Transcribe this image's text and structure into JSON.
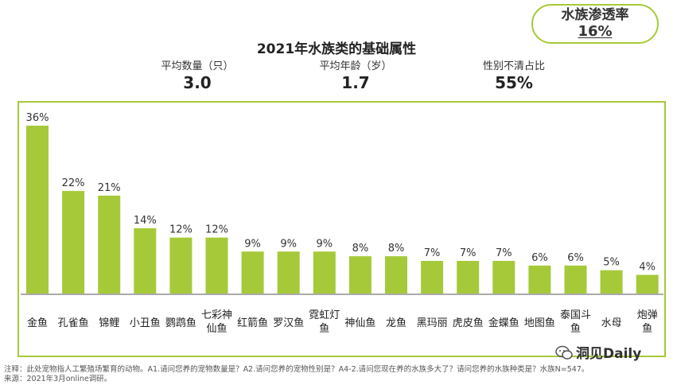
{
  "badge": {
    "label": "水族渗透率",
    "value": "16%"
  },
  "stats": [
    {
      "label": "平均数量（只）",
      "value": "3.0"
    },
    {
      "label": "平均年龄（岁）",
      "value": "1.7"
    },
    {
      "label": "性别不清占比",
      "value": "55%"
    }
  ],
  "watermark": {
    "text": "洞见Daily"
  },
  "notes": {
    "line1": "注释：此处宠物指人工繁殖场繁育的动物。A1.请问您养的宠物数量是？A2.请问您养的宠物性别是？A4-2.请问您现在养的水族多大了？请问您养的水族种类是？水族N=547。",
    "line2": "来源：2021年3月online调研。"
  },
  "colors": {
    "bar": "#a6c93a",
    "frame": "#a6c93a"
  },
  "chart_data": {
    "type": "bar",
    "title": "2021年水族类的基础属性",
    "xlabel": "",
    "ylabel": "",
    "ylim": [
      0,
      40
    ],
    "grid": false,
    "categories": [
      "金鱼",
      "孔雀鱼",
      "锦鲤",
      "小丑鱼",
      "鹦鹉鱼",
      "七彩神仙鱼",
      "红箭鱼",
      "罗汉鱼",
      "霓虹灯鱼",
      "神仙鱼",
      "龙鱼",
      "黑玛丽",
      "虎皮鱼",
      "金蝶鱼",
      "地图鱼",
      "泰国斗鱼",
      "水母",
      "炮弹鱼"
    ],
    "category_lines": [
      [
        "金鱼"
      ],
      [
        "孔雀鱼"
      ],
      [
        "锦鲤"
      ],
      [
        "小丑鱼"
      ],
      [
        "鹦鹉鱼"
      ],
      [
        "七彩神",
        "仙鱼"
      ],
      [
        "红箭鱼"
      ],
      [
        "罗汉鱼"
      ],
      [
        "霓虹灯",
        "鱼"
      ],
      [
        "神仙鱼"
      ],
      [
        "龙鱼"
      ],
      [
        "黑玛丽"
      ],
      [
        "虎皮鱼"
      ],
      [
        "金蝶鱼"
      ],
      [
        "地图鱼"
      ],
      [
        "泰国斗",
        "鱼"
      ],
      [
        "水母"
      ],
      [
        "炮弹",
        "鱼"
      ]
    ],
    "values": [
      36,
      22,
      21,
      14,
      12,
      12,
      9,
      9,
      9,
      8,
      8,
      7,
      7,
      7,
      6,
      6,
      5,
      4
    ],
    "value_labels": [
      "36%",
      "22%",
      "21%",
      "14%",
      "12%",
      "12%",
      "9%",
      "9%",
      "9%",
      "8%",
      "8%",
      "7%",
      "7%",
      "7%",
      "6%",
      "6%",
      "5%",
      "4%"
    ]
  }
}
